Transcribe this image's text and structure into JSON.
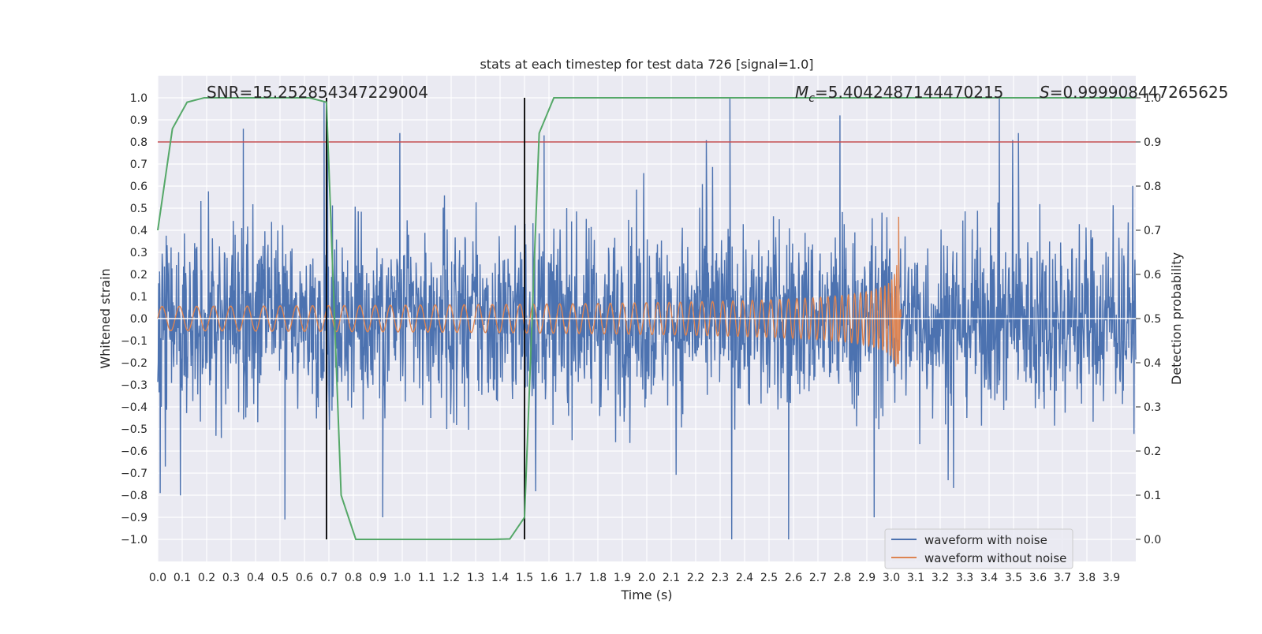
{
  "chart_data": {
    "type": "line",
    "title": "stats at each timestep for test data 726 [signal=1.0]",
    "xlabel": "Time (s)",
    "ylabel_left": "Whitened strain",
    "ylabel_right": "Detection probability",
    "xlim": [
      0.0,
      4.0
    ],
    "ylim_left": [
      -1.1,
      1.1
    ],
    "ylim_right": [
      -0.05,
      1.05
    ],
    "xticks": [
      "0.0",
      "0.1",
      "0.2",
      "0.3",
      "0.4",
      "0.5",
      "0.6",
      "0.7",
      "0.8",
      "0.9",
      "1.0",
      "1.1",
      "1.2",
      "1.3",
      "1.4",
      "1.5",
      "1.6",
      "1.7",
      "1.8",
      "1.9",
      "2.0",
      "2.1",
      "2.2",
      "2.3",
      "2.4",
      "2.5",
      "2.6",
      "2.7",
      "2.8",
      "2.9",
      "3.0",
      "3.1",
      "3.2",
      "3.3",
      "3.4",
      "3.5",
      "3.6",
      "3.7",
      "3.8",
      "3.9"
    ],
    "yticks_left": [
      "1.0",
      "0.9",
      "0.8",
      "0.7",
      "0.6",
      "0.5",
      "0.4",
      "0.3",
      "0.2",
      "0.1",
      "0.0",
      "−0.1",
      "−0.2",
      "−0.3",
      "−0.4",
      "−0.5",
      "−0.6",
      "−0.7",
      "−0.8",
      "−0.9",
      "−1.0"
    ],
    "yticks_right": [
      "1.0",
      "0.9",
      "0.8",
      "0.7",
      "0.6",
      "0.5",
      "0.4",
      "0.3",
      "0.2",
      "0.1",
      "0.0"
    ],
    "grid": true,
    "legend_position": "lower-right",
    "annotations": {
      "snr": "SNR=15.252854347229004",
      "mc_symbol": "M",
      "mc_sub": "c",
      "mc_value": "=5.4042487144470215",
      "s_symbol": "S",
      "s_value": "=0.999908447265625"
    },
    "threshold": {
      "value": 0.8,
      "axis": "left",
      "color": "#c44e52"
    },
    "vertical_lines": [
      0.69,
      1.5
    ],
    "series": [
      {
        "name": "waveform with noise",
        "axis": "left",
        "color": "#4c72b0",
        "x_range": [
          0.0,
          4.0
        ],
        "amplitude_range": [
          -1.0,
          1.0
        ],
        "peaks": [
          {
            "x": 0.35,
            "y": 0.86
          },
          {
            "x": 0.68,
            "y": 0.98
          },
          {
            "x": 0.99,
            "y": 0.84
          },
          {
            "x": 1.58,
            "y": 0.83
          },
          {
            "x": 2.34,
            "y": 1.0
          },
          {
            "x": 2.79,
            "y": 0.92
          },
          {
            "x": 3.52,
            "y": 0.84
          },
          {
            "x": 0.52,
            "y": -0.91
          },
          {
            "x": 0.92,
            "y": -0.9
          },
          {
            "x": 2.58,
            "y": -1.0
          },
          {
            "x": 2.93,
            "y": -0.9
          },
          {
            "x": 0.01,
            "y": -0.79
          }
        ]
      },
      {
        "name": "waveform without noise",
        "axis": "left",
        "color": "#dd8452",
        "x_range": [
          0.0,
          3.04
        ],
        "amplitude_start": 0.055,
        "amplitude_peak": 0.48,
        "merger_time": 3.03
      },
      {
        "name": "detection probability",
        "axis": "right",
        "color": "#55a868",
        "x": [
          0.0,
          0.06,
          0.12,
          0.19,
          0.25,
          0.31,
          0.37,
          0.44,
          0.5,
          0.56,
          0.62,
          0.69,
          0.75,
          0.81,
          0.87,
          0.94,
          1.0,
          1.06,
          1.12,
          1.19,
          1.25,
          1.31,
          1.37,
          1.44,
          1.5,
          1.56,
          1.62,
          1.69,
          1.75,
          1.81,
          1.87,
          1.94,
          2.0,
          2.5,
          3.0,
          3.5,
          4.0
        ],
        "y": [
          0.7,
          0.93,
          0.99,
          1.0,
          1.0,
          1.0,
          1.0,
          1.0,
          1.0,
          1.0,
          1.0,
          0.99,
          0.1,
          0.0,
          0.0,
          0.0,
          0.0,
          0.0,
          0.0,
          0.0,
          0.0,
          0.0,
          0.0,
          0.001,
          0.05,
          0.92,
          1.0,
          1.0,
          1.0,
          1.0,
          1.0,
          1.0,
          1.0,
          1.0,
          1.0,
          1.0,
          1.0
        ]
      }
    ]
  }
}
